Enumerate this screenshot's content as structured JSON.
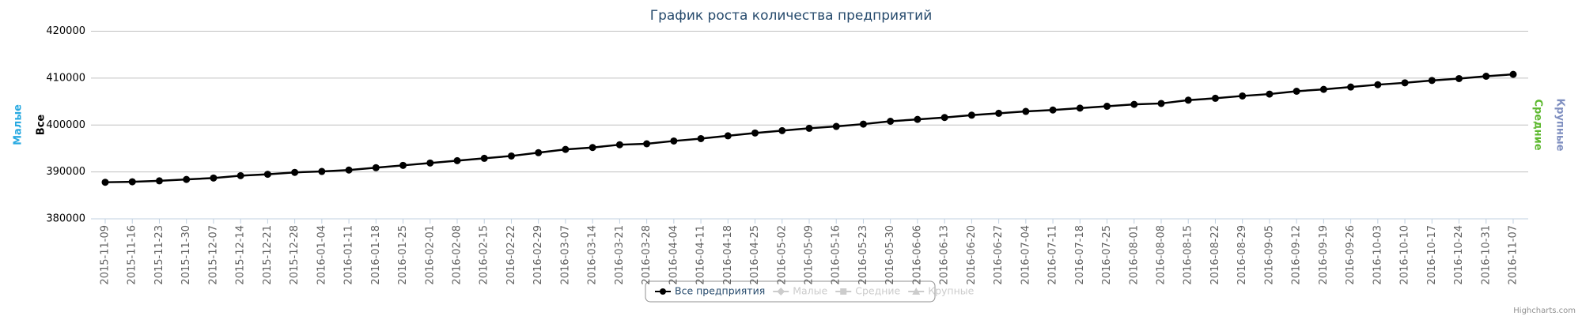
{
  "chart_data": {
    "type": "line",
    "title": "График роста количества предприятий",
    "x": [
      "2015-11-09",
      "2015-11-16",
      "2015-11-23",
      "2015-11-30",
      "2015-12-07",
      "2015-12-14",
      "2015-12-21",
      "2015-12-28",
      "2016-01-04",
      "2016-01-11",
      "2016-01-18",
      "2016-01-25",
      "2016-02-01",
      "2016-02-08",
      "2016-02-15",
      "2016-02-22",
      "2016-02-29",
      "2016-03-07",
      "2016-03-14",
      "2016-03-21",
      "2016-03-28",
      "2016-04-04",
      "2016-04-11",
      "2016-04-18",
      "2016-04-25",
      "2016-05-02",
      "2016-05-09",
      "2016-05-16",
      "2016-05-23",
      "2016-05-30",
      "2016-06-06",
      "2016-06-13",
      "2016-06-20",
      "2016-06-27",
      "2016-07-04",
      "2016-07-11",
      "2016-07-18",
      "2016-07-25",
      "2016-08-01",
      "2016-08-08",
      "2016-08-15",
      "2016-08-22",
      "2016-08-29",
      "2016-09-05",
      "2016-09-12",
      "2016-09-19",
      "2016-09-26",
      "2016-10-03",
      "2016-10-10",
      "2016-10-17",
      "2016-10-24",
      "2016-10-31",
      "2016-11-07"
    ],
    "series": [
      {
        "name": "Все предприятия",
        "color": "#000000",
        "values": [
          387800,
          387900,
          388100,
          388400,
          388700,
          389200,
          389500,
          389900,
          390100,
          390400,
          390900,
          391400,
          391900,
          392400,
          392900,
          393400,
          394100,
          394800,
          395200,
          395800,
          396000,
          396600,
          397100,
          397700,
          398300,
          398800,
          399300,
          399700,
          400200,
          400800,
          401200,
          401600,
          402100,
          402500,
          402900,
          403200,
          403600,
          404000,
          404400,
          404600,
          405300,
          405700,
          406200,
          406600,
          407200,
          407600,
          408100,
          408600,
          409000,
          409500,
          409900,
          410400,
          410800
        ]
      }
    ],
    "hidden_series": [
      {
        "name": "Малые",
        "marker": "diamond"
      },
      {
        "name": "Средние",
        "marker": "square"
      },
      {
        "name": "Крупные",
        "marker": "triangle"
      }
    ],
    "y_axes": [
      {
        "title": "Малые",
        "color": "#27a9e1",
        "side": "left"
      },
      {
        "title": "Все",
        "color": "#000000",
        "side": "left"
      },
      {
        "title": "Средние",
        "color": "#5cb82e",
        "side": "right"
      },
      {
        "title": "Крупные",
        "color": "#7f8fc0",
        "side": "right"
      }
    ],
    "ylim": [
      380000,
      420000
    ],
    "yticks": [
      380000,
      390000,
      400000,
      410000,
      420000
    ],
    "grid": true,
    "credits": "Highcharts.com"
  }
}
